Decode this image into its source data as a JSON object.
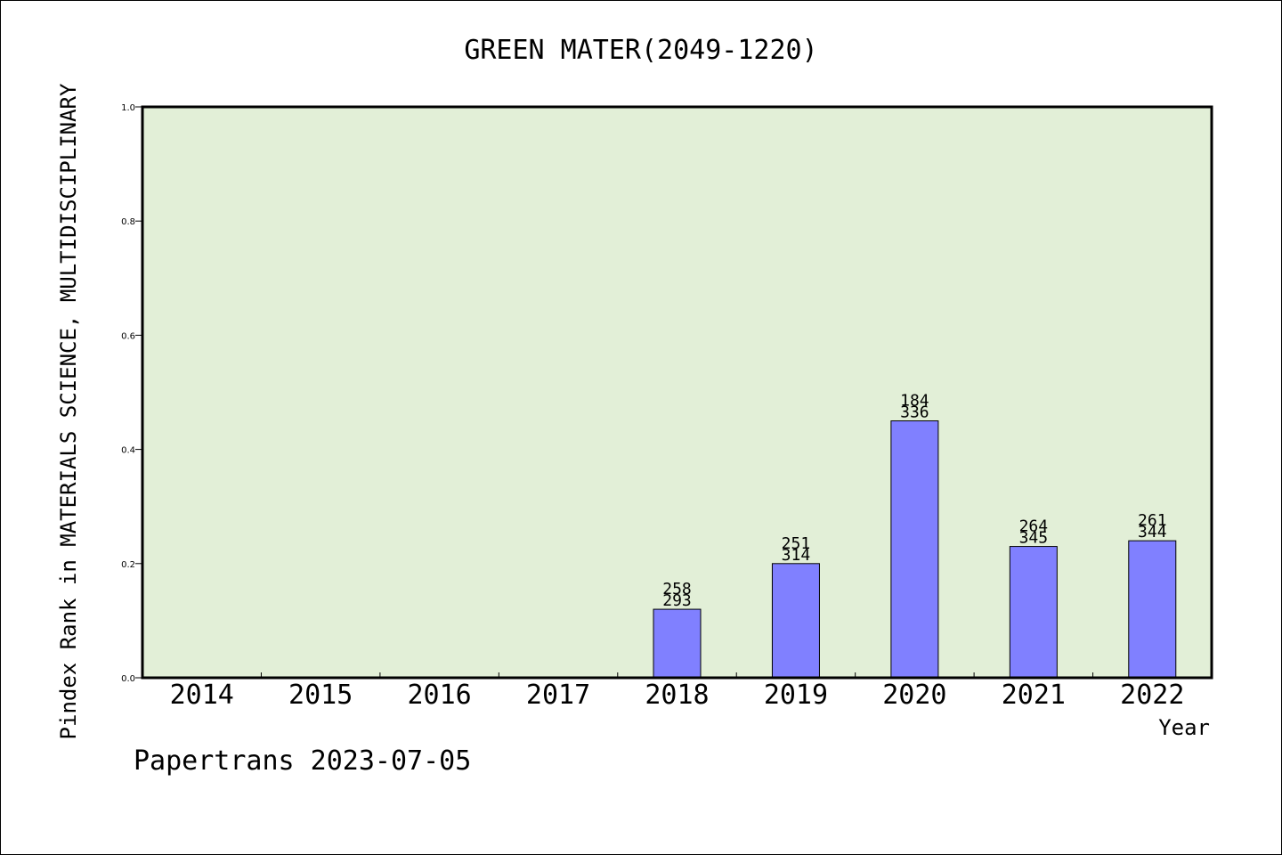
{
  "chart_data": {
    "type": "bar",
    "title": "GREEN MATER(2049-1220)",
    "xlabel": "Year",
    "ylabel": "Pindex Rank in MATERIALS SCIENCE, MULTIDISCIPLINARY",
    "categories": [
      "2014",
      "2015",
      "2016",
      "2017",
      "2018",
      "2019",
      "2020",
      "2021",
      "2022"
    ],
    "values": [
      null,
      null,
      null,
      null,
      0.12,
      0.2,
      0.45,
      0.23,
      0.24
    ],
    "bar_labels_top": [
      "",
      "",
      "",
      "",
      "258",
      "251",
      "184",
      "264",
      "261"
    ],
    "bar_labels_bottom": [
      "",
      "",
      "",
      "",
      "293",
      "314",
      "336",
      "345",
      "344"
    ],
    "yticks": [
      "0.0",
      "0.2",
      "0.4",
      "0.6",
      "0.8",
      "1.0"
    ],
    "ylim": [
      0,
      1.0
    ],
    "grid": false,
    "plot_background": "#e2efd7",
    "bar_color": "#8080ff",
    "footer": "Papertrans 2023-07-05"
  }
}
